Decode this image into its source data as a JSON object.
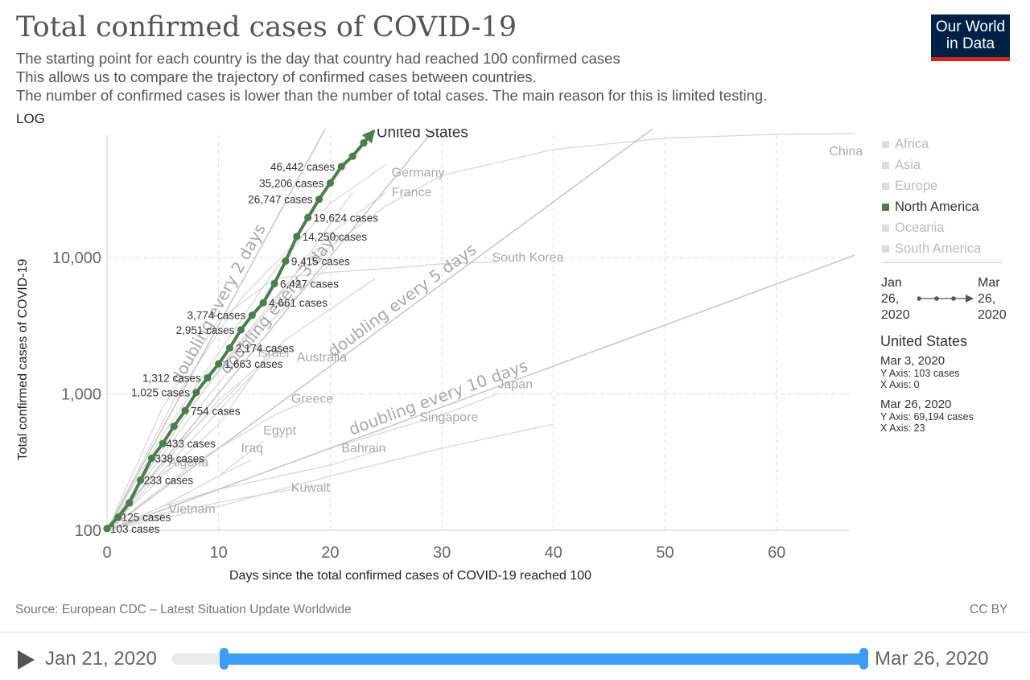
{
  "header": {
    "title": "Total confirmed cases of COVID-19",
    "subtitles": [
      "The starting point for each country is the day that country had reached 100 confirmed cases",
      "This allows us to compare the trajectory of confirmed cases between countries.",
      "The number of confirmed cases is lower than the number of total cases. The main reason for this is limited testing."
    ],
    "log_toggle": "LOG"
  },
  "logo": {
    "line1": "Our World",
    "line2": "in Data"
  },
  "colors": {
    "highlight": "#4a7f4a",
    "background_line": "#d8d8d8",
    "doubling_line": "#c8c8c8",
    "timeline": "#3d9cf5",
    "logo_bg": "#002147",
    "logo_accent": "#ce261e"
  },
  "chart_data": {
    "type": "line",
    "title": "Total confirmed cases of COVID-19",
    "xlabel": "Days since the total confirmed cases of COVID-19 reached 100",
    "ylabel": "Total confirmed cases of COVID-19",
    "y_scale": "log",
    "xlim": [
      0,
      67
    ],
    "ylim": [
      100,
      90000
    ],
    "x_ticks": [
      0,
      10,
      20,
      30,
      40,
      50,
      60
    ],
    "y_ticks": [
      100,
      1000,
      10000
    ],
    "y_tick_labels": [
      "100",
      "1,000",
      "10,000"
    ],
    "grid": true,
    "highlight_series": {
      "name": "United States",
      "x": [
        0,
        1,
        2,
        3,
        4,
        5,
        6,
        7,
        8,
        9,
        10,
        11,
        12,
        13,
        14,
        15,
        16,
        17,
        18,
        19,
        20,
        21,
        22,
        23
      ],
      "y": [
        103,
        125,
        159,
        233,
        338,
        433,
        580,
        754,
        1025,
        1312,
        1663,
        2174,
        2951,
        3774,
        4661,
        6427,
        9415,
        14250,
        19624,
        26747,
        35206,
        46442,
        55231,
        69194
      ]
    },
    "point_labels": [
      {
        "x": 0,
        "y": 103,
        "text": "103 cases"
      },
      {
        "x": 1,
        "y": 125,
        "text": "125 cases"
      },
      {
        "x": 3,
        "y": 233,
        "text": "233 cases"
      },
      {
        "x": 4,
        "y": 338,
        "text": "338 cases"
      },
      {
        "x": 5,
        "y": 433,
        "text": "433 cases"
      },
      {
        "x": 7,
        "y": 754,
        "text": "754 cases"
      },
      {
        "x": 8,
        "y": 1025,
        "text": "1,025 cases"
      },
      {
        "x": 9,
        "y": 1312,
        "text": "1,312 cases"
      },
      {
        "x": 10,
        "y": 1663,
        "text": "1,663 cases"
      },
      {
        "x": 11,
        "y": 2174,
        "text": "2,174 cases"
      },
      {
        "x": 12,
        "y": 2951,
        "text": "2,951 cases"
      },
      {
        "x": 13,
        "y": 3774,
        "text": "3,774 cases"
      },
      {
        "x": 14,
        "y": 4661,
        "text": "4,661 cases"
      },
      {
        "x": 15,
        "y": 6427,
        "text": "6,427 cases"
      },
      {
        "x": 16,
        "y": 9415,
        "text": "9,415 cases"
      },
      {
        "x": 17,
        "y": 14250,
        "text": "14,250 cases"
      },
      {
        "x": 18,
        "y": 19624,
        "text": "19,624 cases"
      },
      {
        "x": 19,
        "y": 26747,
        "text": "26,747 cases"
      },
      {
        "x": 20,
        "y": 35206,
        "text": "35,206 cases"
      },
      {
        "x": 21,
        "y": 46442,
        "text": "46,442 cases"
      }
    ],
    "background_series": [
      {
        "name": "China",
        "x": [
          0,
          5,
          10,
          15,
          20,
          25,
          30,
          40,
          50,
          60,
          67
        ],
        "y": [
          100,
          400,
          1500,
          5000,
          12000,
          24000,
          40000,
          62000,
          75000,
          80000,
          81000
        ]
      },
      {
        "name": "Germany",
        "x": [
          0,
          5,
          10,
          15,
          20,
          25
        ],
        "y": [
          100,
          500,
          2000,
          8000,
          25000,
          48000
        ]
      },
      {
        "name": "France",
        "x": [
          0,
          5,
          10,
          15,
          20,
          25
        ],
        "y": [
          100,
          400,
          1500,
          5000,
          15000,
          30000
        ]
      },
      {
        "name": "South Korea",
        "x": [
          0,
          5,
          10,
          15,
          20,
          25,
          30,
          35
        ],
        "y": [
          100,
          800,
          3500,
          7000,
          7800,
          8300,
          9000,
          9300
        ]
      },
      {
        "name": "Israel",
        "x": [
          0,
          5,
          10,
          13
        ],
        "y": [
          100,
          400,
          1500,
          2800
        ]
      },
      {
        "name": "Australia",
        "x": [
          0,
          5,
          10,
          15
        ],
        "y": [
          100,
          250,
          600,
          2300
        ]
      },
      {
        "name": "Greece",
        "x": [
          0,
          5,
          10,
          15,
          18
        ],
        "y": [
          100,
          200,
          400,
          700,
          900
        ]
      },
      {
        "name": "Egypt",
        "x": [
          0,
          5,
          10,
          14
        ],
        "y": [
          100,
          150,
          250,
          450
        ]
      },
      {
        "name": "Iraq",
        "x": [
          0,
          5,
          10,
          13
        ],
        "y": [
          100,
          150,
          250,
          330
        ]
      },
      {
        "name": "Bahrain",
        "x": [
          0,
          5,
          10,
          20,
          25
        ],
        "y": [
          100,
          150,
          200,
          300,
          400
        ]
      },
      {
        "name": "Kuwait",
        "x": [
          0,
          5,
          10,
          15,
          20
        ],
        "y": [
          100,
          130,
          160,
          190,
          220
        ]
      },
      {
        "name": "Algeria",
        "x": [
          0,
          3,
          6,
          7
        ],
        "y": [
          100,
          200,
          300,
          350
        ]
      },
      {
        "name": "Vietnam",
        "x": [
          0,
          3,
          6
        ],
        "y": [
          100,
          120,
          140
        ]
      },
      {
        "name": "Singapore",
        "x": [
          0,
          10,
          20,
          30,
          40
        ],
        "y": [
          100,
          150,
          250,
          400,
          600
        ]
      },
      {
        "name": "Japan",
        "x": [
          0,
          10,
          20,
          30,
          35
        ],
        "y": [
          100,
          200,
          400,
          700,
          1000
        ]
      },
      {
        "x": [
          0,
          8,
          16,
          22
        ],
        "y": [
          100,
          900,
          6000,
          30000
        ]
      },
      {
        "x": [
          0,
          6,
          12,
          18
        ],
        "y": [
          100,
          900,
          5000,
          16000
        ]
      },
      {
        "x": [
          0,
          7,
          14,
          20
        ],
        "y": [
          100,
          600,
          3000,
          9000
        ]
      },
      {
        "x": [
          0,
          8,
          16,
          24
        ],
        "y": [
          100,
          500,
          2500,
          7000
        ]
      },
      {
        "x": [
          0,
          5,
          10,
          15
        ],
        "y": [
          100,
          300,
          900,
          2000
        ]
      },
      {
        "x": [
          0,
          6,
          12
        ],
        "y": [
          100,
          400,
          1200
        ]
      },
      {
        "x": [
          0,
          4,
          8,
          12
        ],
        "y": [
          100,
          180,
          320,
          500
        ]
      }
    ],
    "country_labels": [
      {
        "x": 64.7,
        "y": 60000,
        "text": "China"
      },
      {
        "x": 25.5,
        "y": 42000,
        "text": "Germany"
      },
      {
        "x": 25.5,
        "y": 30000,
        "text": "France"
      },
      {
        "x": 34.5,
        "y": 10000,
        "text": "South Korea"
      },
      {
        "x": 13.5,
        "y": 2000,
        "text": "Israel"
      },
      {
        "x": 17,
        "y": 1850,
        "text": "Australia"
      },
      {
        "x": 16.5,
        "y": 920,
        "text": "Greece"
      },
      {
        "x": 14,
        "y": 540,
        "text": "Egypt"
      },
      {
        "x": 12,
        "y": 400,
        "text": "Iraq"
      },
      {
        "x": 21,
        "y": 400,
        "text": "Bahrain"
      },
      {
        "x": 16.5,
        "y": 205,
        "text": "Kuwait"
      },
      {
        "x": 5.5,
        "y": 315,
        "text": "Algeria"
      },
      {
        "x": 5.5,
        "y": 143,
        "text": "Vietnam"
      },
      {
        "x": 28,
        "y": 675,
        "text": "Singapore"
      },
      {
        "x": 35,
        "y": 1180,
        "text": "Japan"
      }
    ],
    "doubling_lines": [
      {
        "days": 2,
        "label": "doubling every 2 days"
      },
      {
        "days": 3,
        "label": "doubling every 3 days"
      },
      {
        "days": 5,
        "label": "doubling every 5 days"
      },
      {
        "days": 10,
        "label": "doubling every 10 days"
      }
    ]
  },
  "legend": {
    "items": [
      {
        "label": "Africa",
        "active": false
      },
      {
        "label": "Asia",
        "active": false
      },
      {
        "label": "Europe",
        "active": false
      },
      {
        "label": "North America",
        "active": true
      },
      {
        "label": "Oceania",
        "active": false
      },
      {
        "label": "South America",
        "active": false
      }
    ]
  },
  "mini_timeline": {
    "start": [
      "Jan",
      "26,",
      "2020"
    ],
    "end": [
      "Mar",
      "26,",
      "2020"
    ]
  },
  "info": {
    "country": "United States",
    "start_date": "Mar 3, 2020",
    "start_y": "Y Axis: 103 cases",
    "start_x": "X Axis: 0",
    "end_date": "Mar 26, 2020",
    "end_y": "Y Axis: 69,194 cases",
    "end_x": "X Axis: 23"
  },
  "footer": {
    "source": "Source: European CDC – Latest Situation Update Worldwide",
    "license": "CC BY"
  },
  "timeline": {
    "start_label": "Jan 21, 2020",
    "end_label": "Mar 26, 2020",
    "range_start": 0.075,
    "range_end": 1.0
  }
}
